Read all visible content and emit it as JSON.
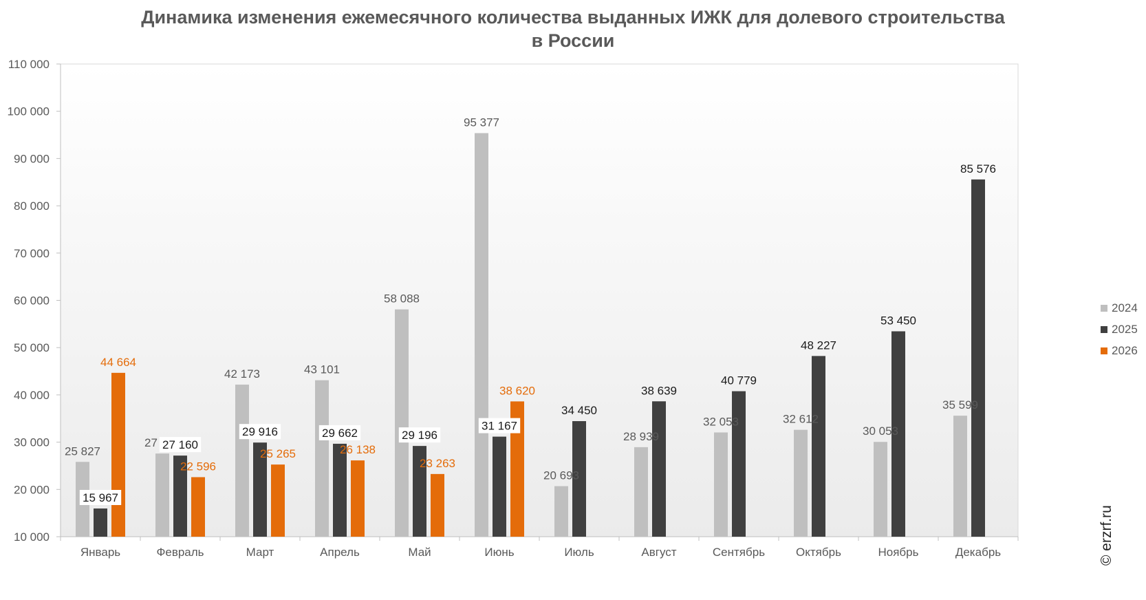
{
  "chart_data": {
    "type": "bar",
    "title_line1": "Динамика изменения ежемесячного количества выданных ИЖК для долевого строительства",
    "title_line2": "в России",
    "categories": [
      "Январь",
      "Февраль",
      "Март",
      "Апрель",
      "Май",
      "Июнь",
      "Июль",
      "Август",
      "Сентябрь",
      "Октябрь",
      "Ноябрь",
      "Декабрь"
    ],
    "series": [
      {
        "name": "2024",
        "color": "#bfbfbf",
        "label_color": "#595959",
        "values": [
          25827,
          27599,
          42173,
          43101,
          58088,
          95377,
          20693,
          28939,
          32053,
          32612,
          30053,
          35599
        ],
        "labels": [
          "25 827",
          "27 599",
          "42 173",
          "43 101",
          "58 088",
          "95 377",
          "20 693",
          "28 939",
          "32 053",
          "32 612",
          "30 053",
          "35 599"
        ]
      },
      {
        "name": "2025",
        "color": "#404040",
        "label_color": "#1a1a1a",
        "values": [
          15967,
          27160,
          29916,
          29662,
          29196,
          31167,
          34450,
          38639,
          40779,
          48227,
          53450,
          85576
        ],
        "labels": [
          "15 967",
          "27 160",
          "29 916",
          "29 662",
          "29 196",
          "31 167",
          "34 450",
          "38 639",
          "40 779",
          "48 227",
          "53 450",
          "85 576"
        ]
      },
      {
        "name": "2026",
        "color": "#e46c0a",
        "label_color": "#e46c0a",
        "values": [
          44664,
          22596,
          25265,
          26138,
          23263,
          38620,
          null,
          null,
          null,
          null,
          null,
          null
        ],
        "labels": [
          "44 664",
          "22 596",
          "25 265",
          "26 138",
          "23 263",
          "38 620",
          null,
          null,
          null,
          null,
          null,
          null
        ]
      }
    ],
    "ylim": [
      10000,
      110000
    ],
    "yticks": [
      10000,
      20000,
      30000,
      40000,
      50000,
      60000,
      70000,
      80000,
      90000,
      100000,
      110000
    ],
    "ytick_labels": [
      "10 000",
      "20 000",
      "30 000",
      "40 000",
      "50 000",
      "60 000",
      "70 000",
      "80 000",
      "90 000",
      "100 000",
      "110 000"
    ],
    "grid": false,
    "legend_position": "right"
  },
  "watermark": "© erzrf.ru"
}
